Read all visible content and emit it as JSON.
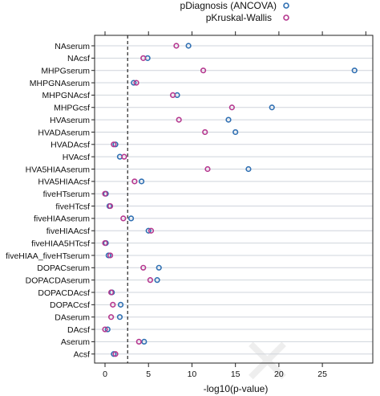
{
  "chart_data": {
    "type": "scatter",
    "xlabel": "-log10(p-value)",
    "xlim": [
      -1.2,
      30.8
    ],
    "xticks": [
      0,
      5,
      10,
      15,
      20,
      25
    ],
    "xticks_top": [
      0,
      5,
      10,
      15,
      20,
      25,
      30
    ],
    "reference_line_x": 2.6,
    "grid": "horizontal",
    "legend_position": "top",
    "categories": [
      "NAserum",
      "NAcsf",
      "MHPGserum",
      "MHPGNAserum",
      "MHPGNAcsf",
      "MHPGcsf",
      "HVAserum",
      "HVADAserum",
      "HVADAcsf",
      "HVAcsf",
      "HVA5HIAAserum",
      "HVA5HIAAcsf",
      "fiveHTserum",
      "fiveHTcsf",
      "fiveHIAAserum",
      "fiveHIAAcsf",
      "fiveHIAA5HTcsf",
      "fiveHIAA_fiveHTserum",
      "DOPACserum",
      "DOPACDAserum",
      "DOPACDAcsf",
      "DOPACcsf",
      "DAserum",
      "DAcsf",
      "Aserum",
      "Acsf"
    ],
    "series": [
      {
        "name": "pDiagnosis (ANCOVA)",
        "color": "#2f6fb2",
        "values": [
          9.6,
          4.9,
          28.7,
          3.3,
          8.3,
          19.2,
          14.2,
          15.0,
          1.2,
          1.7,
          16.5,
          4.2,
          0.1,
          0.5,
          3.0,
          5.0,
          0.1,
          0.4,
          6.2,
          6.0,
          0.8,
          1.8,
          1.7,
          0.3,
          4.5,
          1.0
        ]
      },
      {
        "name": "pKruskal-Wallis",
        "color": "#b5388f",
        "values": [
          8.2,
          4.4,
          11.3,
          3.6,
          7.8,
          14.6,
          8.5,
          11.5,
          1.0,
          2.2,
          11.8,
          3.4,
          0.0,
          0.6,
          2.1,
          5.3,
          0.0,
          0.6,
          4.4,
          5.2,
          0.7,
          0.9,
          0.7,
          0.0,
          3.9,
          1.2
        ]
      }
    ]
  },
  "legend": {
    "items": [
      "pDiagnosis (ANCOVA)",
      "pKruskal-Wallis"
    ]
  },
  "colors": {
    "ancova": "#2f6fb2",
    "kruskal": "#b5388f",
    "grid": "#cfd4dc",
    "axis": "#222222"
  }
}
